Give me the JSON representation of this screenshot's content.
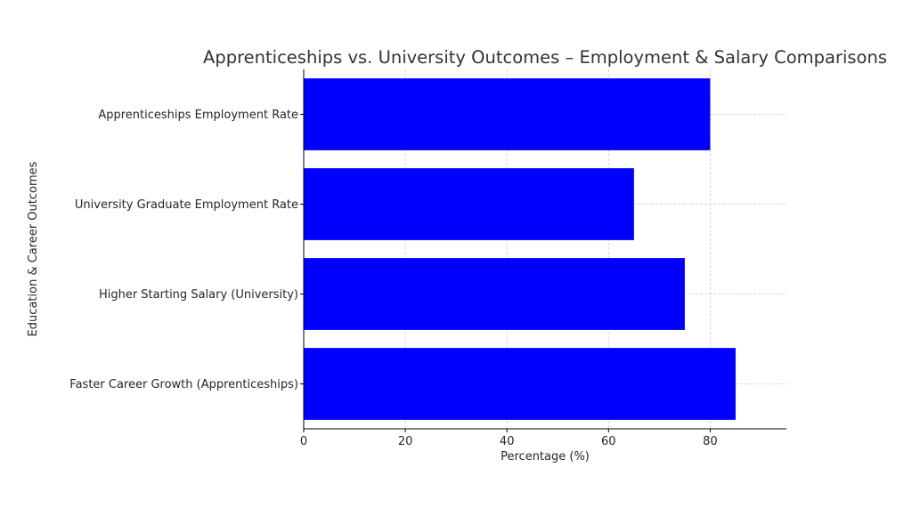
{
  "chart_data": {
    "type": "bar",
    "orientation": "horizontal",
    "title": "Apprenticeships vs. University Outcomes – Employment & Salary Comparisons",
    "xlabel": "Percentage (%)",
    "ylabel": "Education & Career Outcomes",
    "categories": [
      "Apprenticeships Employment Rate",
      "University Graduate Employment Rate",
      "Higher Starting Salary (University)",
      "Faster Career Growth (Apprenticeships)"
    ],
    "values": [
      80,
      65,
      75,
      85
    ],
    "xlim": [
      0,
      95
    ],
    "xticks": [
      0,
      20,
      40,
      60,
      80
    ],
    "grid": true,
    "bar_color": "#0000ff"
  }
}
